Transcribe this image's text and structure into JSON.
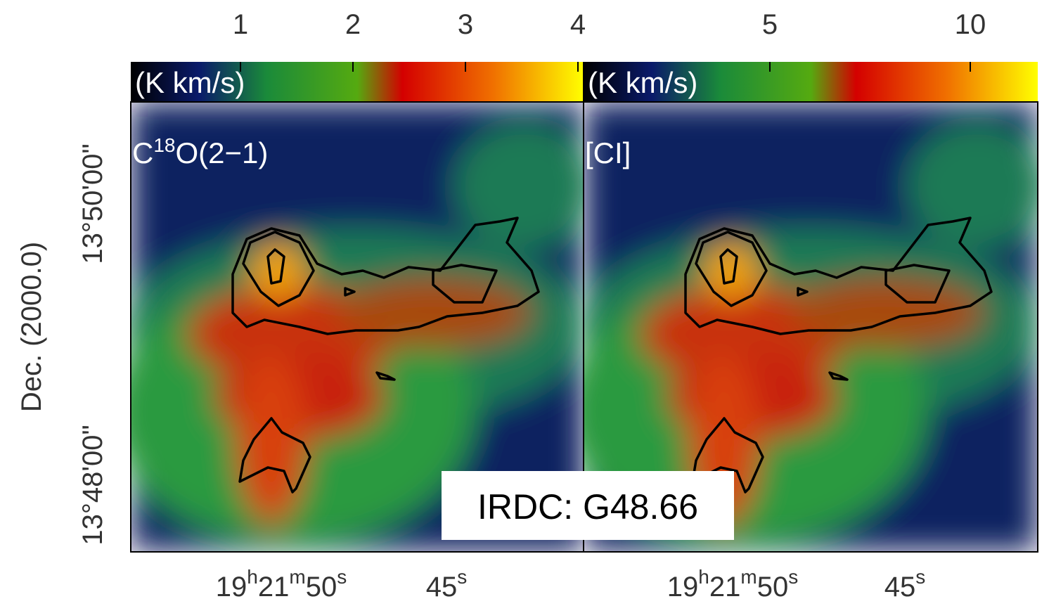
{
  "colorbar": {
    "ticks": [
      1,
      2,
      3,
      4,
      5,
      10
    ],
    "unit": "(K km/s)"
  },
  "panels": [
    {
      "label": {
        "base": "C",
        "sup": "18",
        "rest": "O(2−1)"
      }
    },
    {
      "label": "[CI]"
    }
  ],
  "x_ticks": [
    [
      "19",
      "h",
      "21",
      "m",
      "50",
      "s"
    ],
    [
      "45",
      "s"
    ]
  ],
  "y_axis": {
    "label": "Dec. (2000.0)",
    "ticks": [
      "13°50'00\"",
      "13°48'00\""
    ]
  },
  "annotation": "IRDC: G48.66"
}
